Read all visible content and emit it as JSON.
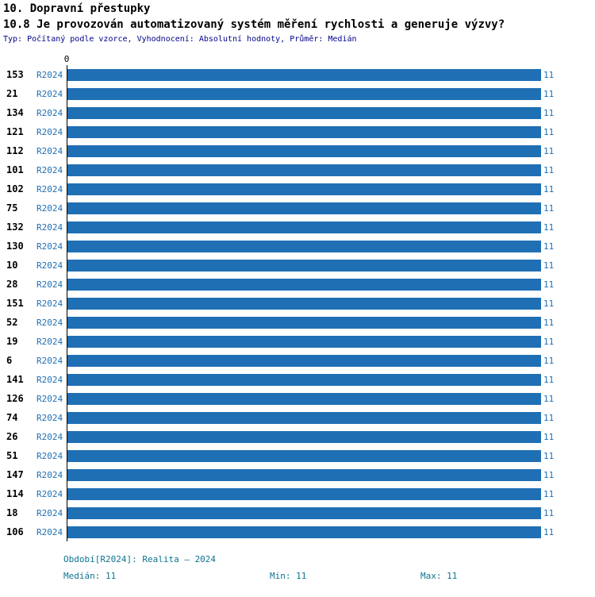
{
  "header": {
    "title": "10. Dopravní přestupky",
    "subtitle": "10.8 Je provozován automatizovaný systém měření rychlosti a generuje výzvy?",
    "meta": "Typ: Počítaný podle vzorce, Vyhodnocení: Absolutní hodnoty, Průměr: Medián"
  },
  "chart_data": {
    "type": "bar",
    "orientation": "horizontal",
    "title": "10.8 Je provozován automatizovaný systém měření rychlosti a generuje výzvy?",
    "categories": [
      "153",
      "21",
      "134",
      "121",
      "112",
      "101",
      "102",
      "75",
      "132",
      "130",
      "10",
      "28",
      "151",
      "52",
      "19",
      "6",
      "141",
      "126",
      "74",
      "26",
      "51",
      "147",
      "114",
      "18",
      "106"
    ],
    "series": [
      {
        "name": "R2024",
        "values": [
          11,
          11,
          11,
          11,
          11,
          11,
          11,
          11,
          11,
          11,
          11,
          11,
          11,
          11,
          11,
          11,
          11,
          11,
          11,
          11,
          11,
          11,
          11,
          11,
          11
        ]
      }
    ],
    "xlim": [
      0,
      11
    ],
    "axis_zero_label": "0",
    "grid": false,
    "legend": "none",
    "value_labels": true
  },
  "footer": {
    "period": "Období[R2024]: Realita – 2024",
    "median": "Medián: 11",
    "min": "Min: 11",
    "max": "Max: 11"
  },
  "colors": {
    "bar": "#1F6FB4",
    "series_label": "#1F6FB4",
    "value_label": "#1F6FB4",
    "meta_text": "#00008B",
    "footer_text": "#0E7490",
    "axis": "#000000"
  }
}
